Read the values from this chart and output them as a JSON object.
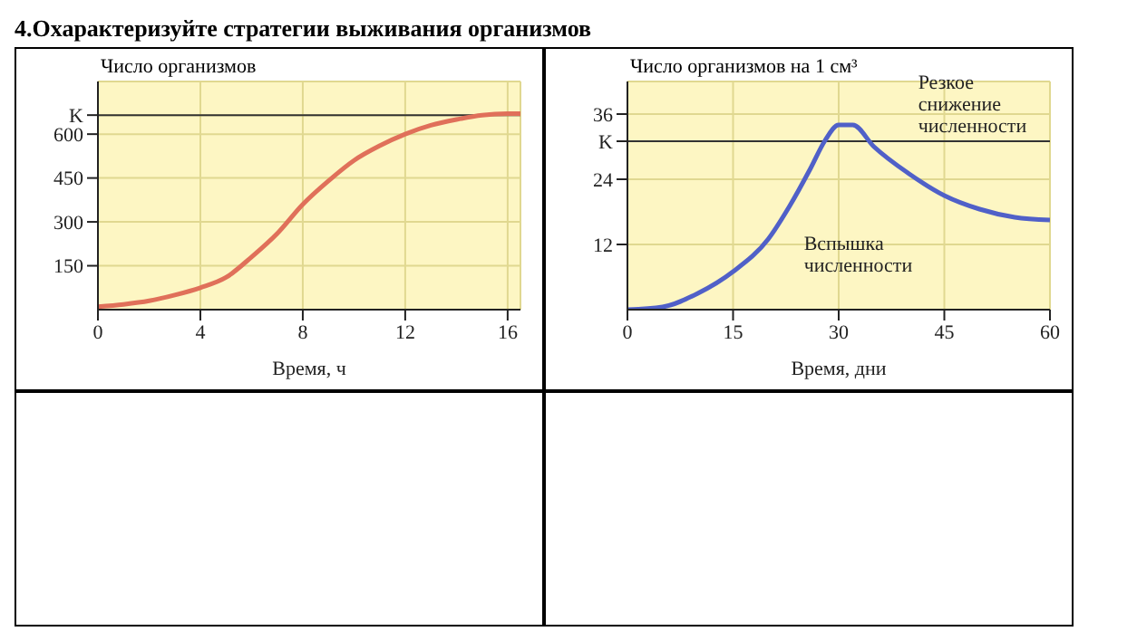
{
  "chart_data": [
    {
      "type": "line",
      "title": "4.Охарактеризуйте стратегии выживания организмов",
      "ylabel": "Число организмов",
      "xlabel": "Время, ч",
      "x": [
        0,
        1,
        2,
        3,
        4,
        5,
        6,
        7,
        8,
        9,
        10,
        11,
        12,
        13,
        14,
        15,
        16,
        16.5
      ],
      "series": [
        {
          "color": "#e0705a",
          "values": [
            10,
            18,
            30,
            50,
            75,
            110,
            180,
            260,
            360,
            440,
            510,
            560,
            600,
            630,
            650,
            665,
            670,
            670
          ]
        }
      ],
      "xlim": [
        0,
        16.5
      ],
      "xticks": [
        0,
        4,
        8,
        12,
        16
      ],
      "ylim": [
        0,
        780
      ],
      "yticks": [
        150,
        300,
        450,
        600,
        {
          "value": 665,
          "label": "K"
        }
      ],
      "ref_lines": [
        {
          "axis": "y",
          "value": 665
        }
      ],
      "grid": true,
      "marker": "none"
    },
    {
      "type": "line",
      "ylabel": "Число организмов на 1 см³",
      "xlabel": "Время, дни",
      "x": [
        0,
        5,
        10,
        15,
        20,
        23,
        26,
        28,
        30,
        32,
        35,
        40,
        45,
        50,
        55,
        60
      ],
      "series": [
        {
          "color": "#5060c8",
          "values": [
            0,
            0.5,
            3,
            7,
            13,
            19,
            26,
            31,
            34,
            34,
            30,
            25,
            21,
            18.5,
            17,
            16.5
          ]
        }
      ],
      "xlim": [
        0,
        60
      ],
      "xticks": [
        0,
        15,
        30,
        45,
        60
      ],
      "ylim": [
        0,
        42
      ],
      "yticks": [
        12,
        24,
        {
          "value": 31,
          "label": "K"
        },
        36
      ],
      "ref_lines": [
        {
          "axis": "y",
          "value": 31
        }
      ],
      "annotations": [
        {
          "text": "Резкое снижение численности",
          "x": 40,
          "y": 25
        },
        {
          "text": "Вспышка численности",
          "x": 23,
          "y": 19
        }
      ],
      "grid": true,
      "marker": "none"
    }
  ]
}
